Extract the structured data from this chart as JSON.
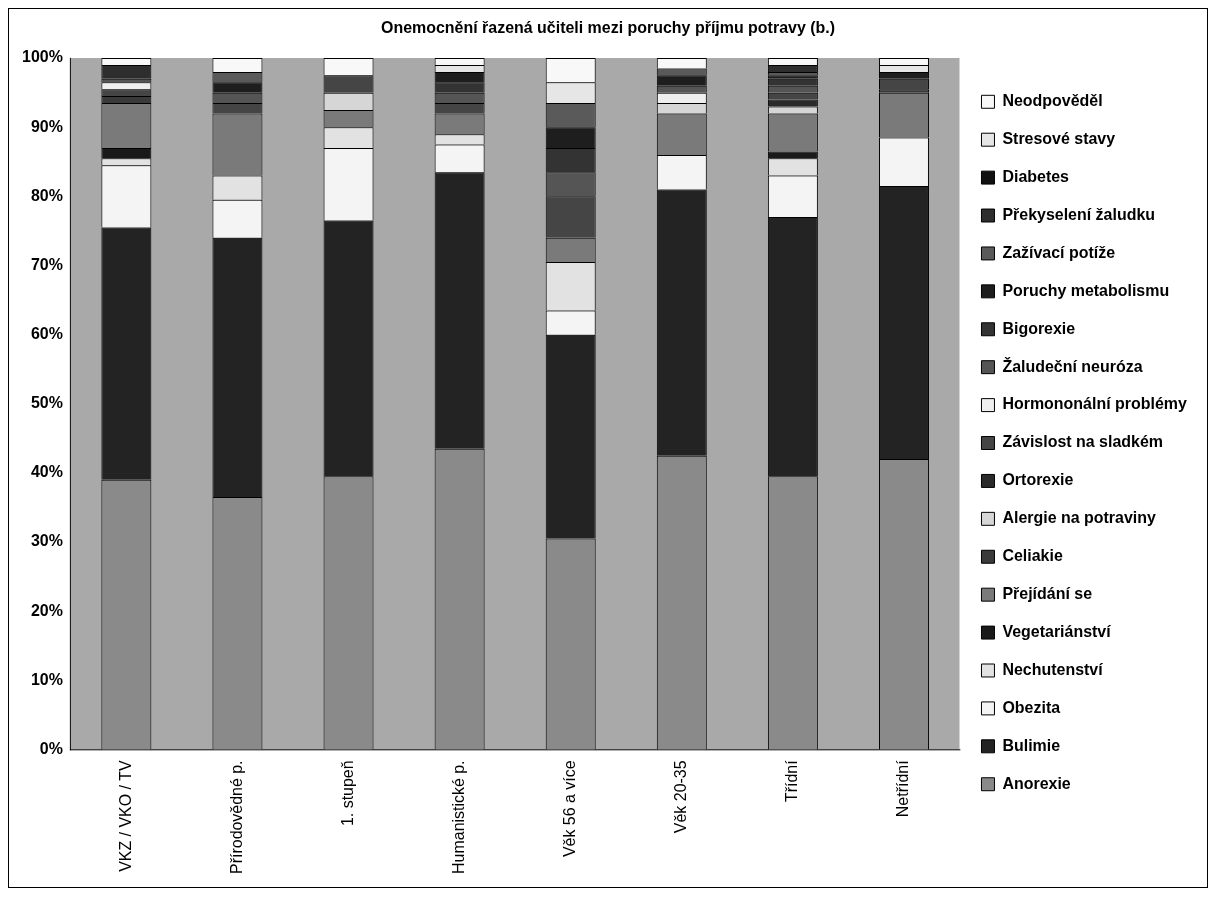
{
  "chart_data": {
    "type": "bar",
    "stacked": true,
    "title": "Onemocnění řazená učiteli mezi poruchy příjmu potravy (b.)",
    "categories": [
      "VKZ / VKO / TV",
      "Přírodovědné p.",
      "1. stupeň",
      "Humanistické p.",
      "Věk 56 a více",
      "Věk 20-35",
      "Třídní",
      "Netřídní"
    ],
    "ylim": [
      0,
      100
    ],
    "yticks": [
      {
        "value": 0,
        "label": "0%"
      },
      {
        "value": 10,
        "label": "10%"
      },
      {
        "value": 20,
        "label": "20%"
      },
      {
        "value": 30,
        "label": "30%"
      },
      {
        "value": 40,
        "label": "40%"
      },
      {
        "value": 50,
        "label": "50%"
      },
      {
        "value": 60,
        "label": "60%"
      },
      {
        "value": 70,
        "label": "70%"
      },
      {
        "value": 80,
        "label": "80%"
      },
      {
        "value": 90,
        "label": "90%"
      },
      {
        "value": 100,
        "label": "100%"
      }
    ],
    "legend": "right",
    "series": [
      {
        "name": "Anorexie",
        "color": "#8a8a8a",
        "values": [
          39,
          36.5,
          39.5,
          43.5,
          30.5,
          42.5,
          39.5,
          42
        ]
      },
      {
        "name": "Bulimie",
        "color": "#232323",
        "values": [
          36.5,
          37.5,
          37,
          40,
          29.5,
          38.5,
          37.5,
          39.5
        ]
      },
      {
        "name": "Obezita",
        "color": "#f4f4f4",
        "values": [
          9,
          5.5,
          10.5,
          4,
          3.5,
          5,
          6,
          7
        ]
      },
      {
        "name": "Nechutenství",
        "color": "#e2e2e2",
        "values": [
          1,
          3.5,
          3,
          1.5,
          7,
          0,
          2.5,
          0
        ]
      },
      {
        "name": "Vegetariánství",
        "color": "#1a1a1a",
        "values": [
          1.5,
          0,
          0,
          0,
          0,
          0,
          1,
          0
        ]
      },
      {
        "name": "Přejídání se",
        "color": "#7a7a7a",
        "values": [
          6.5,
          9,
          2.5,
          3,
          3.5,
          6,
          5.5,
          6.5
        ]
      },
      {
        "name": "Celiakie",
        "color": "#3a3a3a",
        "values": [
          1,
          0,
          0,
          0,
          0,
          0,
          0,
          0.5
        ]
      },
      {
        "name": "Alergie na potraviny",
        "color": "#d6d6d6",
        "values": [
          0,
          0,
          2.5,
          0,
          0,
          1.5,
          1,
          0
        ]
      },
      {
        "name": "Ortorexie",
        "color": "#2a2a2a",
        "values": [
          0,
          0,
          0,
          0,
          0,
          0,
          1,
          0
        ]
      },
      {
        "name": "Závislost na sladkém",
        "color": "#454545",
        "values": [
          1,
          1.5,
          2.5,
          1.5,
          6,
          0,
          1,
          1.5
        ]
      },
      {
        "name": "Hormononální problémy",
        "color": "#efefef",
        "values": [
          1,
          0,
          0,
          0,
          0,
          1.5,
          0,
          0
        ]
      },
      {
        "name": "Žaludeční neuróza",
        "color": "#555555",
        "values": [
          0.5,
          1.5,
          0,
          1.5,
          3.5,
          1,
          1,
          0
        ]
      },
      {
        "name": "Bigorexie",
        "color": "#333333",
        "values": [
          0,
          0,
          0,
          1.5,
          3.5,
          0,
          1,
          0
        ]
      },
      {
        "name": "Poruchy metabolismu",
        "color": "#1e1e1e",
        "values": [
          0,
          1.5,
          0,
          1.5,
          3,
          1.5,
          0.5,
          1
        ]
      },
      {
        "name": "Zažívací potíže",
        "color": "#5a5a5a",
        "values": [
          0,
          1.5,
          0,
          0,
          3.5,
          1,
          0.5,
          0
        ]
      },
      {
        "name": "Překyselení žaludku",
        "color": "#2e2e2e",
        "values": [
          2,
          0,
          0,
          0,
          0,
          0,
          1,
          0
        ]
      },
      {
        "name": "Diabetes",
        "color": "#111111",
        "values": [
          0,
          0,
          0,
          0,
          0,
          0,
          0,
          0
        ]
      },
      {
        "name": "Stresové stavy",
        "color": "#e6e6e6",
        "values": [
          0,
          0,
          0,
          1,
          3,
          0,
          0,
          1
        ]
      },
      {
        "name": "Neodpověděl",
        "color": "#f8f8f8",
        "values": [
          1,
          2,
          2.5,
          1,
          3.5,
          1.5,
          1,
          1
        ]
      }
    ]
  }
}
